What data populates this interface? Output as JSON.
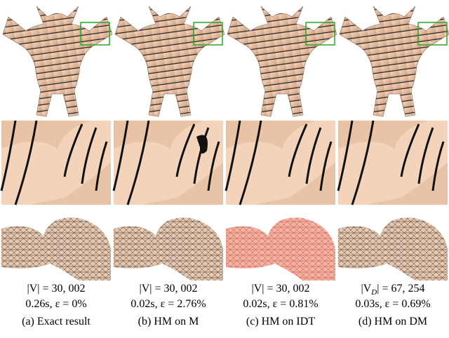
{
  "panels": [
    {
      "size": "|V| = 30, 002",
      "stats": "0.26s, ε = 0%",
      "caption": "(a) Exact result"
    },
    {
      "size": "|V| = 30, 002",
      "stats": "0.02s, ε = 2.76%",
      "caption": "(b) HM on M"
    },
    {
      "size": "|V| = 30, 002",
      "stats": "0.02s, ε = 0.81%",
      "caption": "(c) HM on IDT"
    },
    {
      "size_parts": [
        "|V",
        "D",
        "| = 67, 254"
      ],
      "stats": "0.03s, ε = 0.69%",
      "caption": "(d) HM on DM"
    }
  ]
}
